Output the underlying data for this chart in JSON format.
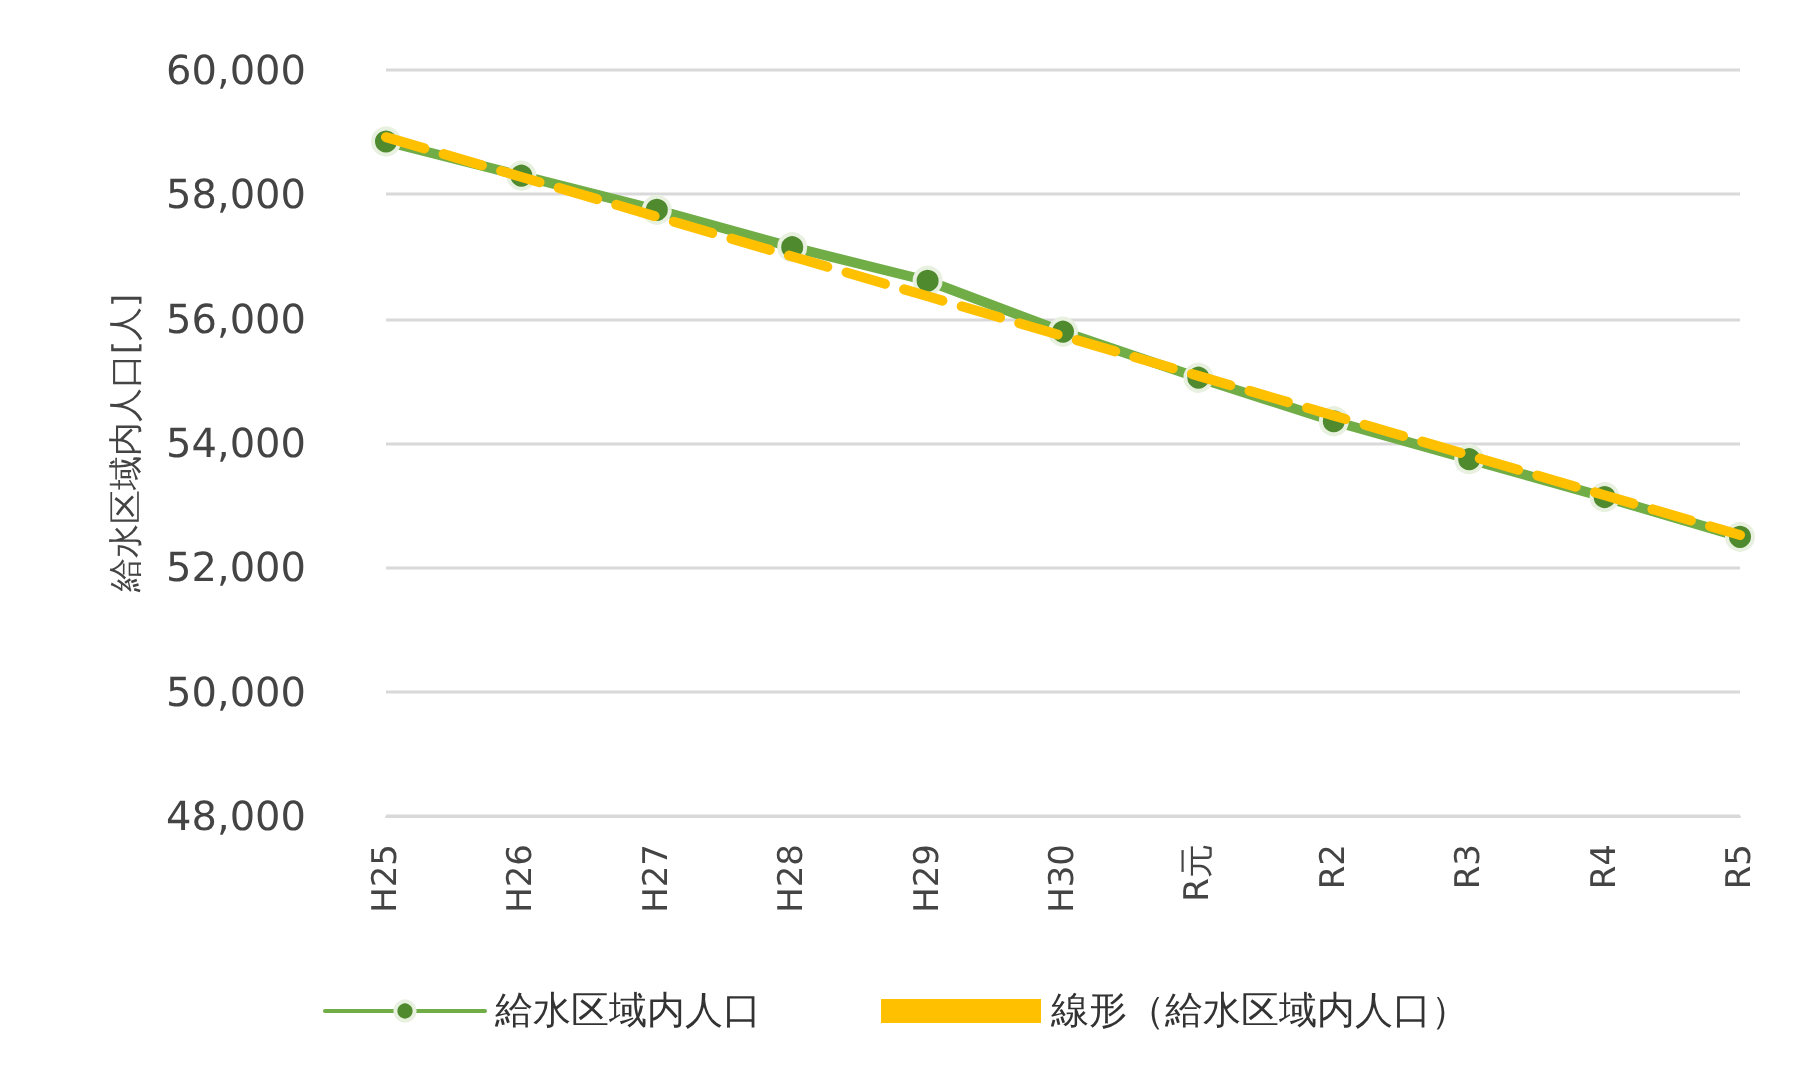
{
  "chart_data": {
    "type": "line",
    "ylabel": "給水区域内人口[人]",
    "categories": [
      "H25",
      "H26",
      "H27",
      "H28",
      "H29",
      "H30",
      "R元",
      "R2",
      "R3",
      "R4",
      "R5"
    ],
    "series": [
      {
        "name": "給水区域内人口",
        "color": "#70ad47",
        "marker": "circle",
        "line_style": "solid",
        "values": [
          58850,
          58300,
          57750,
          57150,
          56610,
          55790,
          55050,
          54350,
          53740,
          53130,
          52490
        ]
      },
      {
        "name": "線形（給水区域内人口）",
        "color": "#ffc000",
        "marker": "none",
        "line_style": "dashed",
        "values": [
          58920,
          58280,
          57640,
          57000,
          56360,
          55720,
          55080,
          54440,
          53800,
          53160,
          52520
        ]
      }
    ],
    "ylim": [
      48000,
      60000
    ],
    "yticks": [
      {
        "value": 48000,
        "label": "48,000"
      },
      {
        "value": 50000,
        "label": "50,000"
      },
      {
        "value": 52000,
        "label": "52,000"
      },
      {
        "value": 54000,
        "label": "54,000"
      },
      {
        "value": 56000,
        "label": "56,000"
      },
      {
        "value": 58000,
        "label": "58,000"
      },
      {
        "value": 60000,
        "label": "60,000"
      }
    ],
    "grid": "y",
    "legend": "bottom"
  }
}
